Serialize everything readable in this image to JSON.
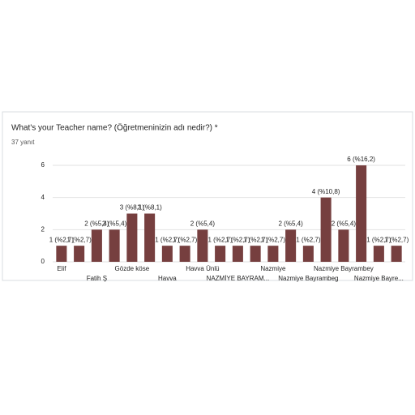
{
  "chart_data": {
    "type": "bar",
    "title": "What's your Teacher name? (Öğretmeninizin adı nedir?) *",
    "subtitle": "37 yanıt",
    "categories": [
      "Elif",
      null,
      "Fatih Ş",
      null,
      "Gözde köse",
      null,
      "Havva",
      null,
      "Havva Ünlü",
      null,
      "NAZMİYE BAYRAM...",
      null,
      "Nazmiye",
      null,
      "Nazmiye Bayrambeg",
      null,
      "Nazmiye Bayrambey",
      null,
      "Nazmiye Bayre...",
      null
    ],
    "values": [
      1,
      1,
      2,
      2,
      3,
      3,
      1,
      1,
      2,
      1,
      1,
      1,
      1,
      2,
      1,
      4,
      2,
      6,
      1,
      1
    ],
    "value_labels": [
      "1 (%2,7)",
      "1 (%2,7)",
      "2 (%5,4)",
      "2 (%5,4)",
      "3 (%8,1)",
      "3 (%8,1)",
      "1 (%2,7)",
      "1 (%2,7)",
      "2 (%5,4)",
      "1 (%2,7)",
      "1 (%2,7)",
      "1 (%2,7)",
      "1 (%2,7)",
      "2 (%5,4)",
      "1 (%2,7)",
      "4 (%10,8)",
      "2 (%5,4)",
      "6 (%16,2)",
      "1 (%2,7)",
      "1 (%2,7)"
    ],
    "color": "#763f3f",
    "ylim": [
      0,
      6
    ],
    "yticks": [
      0,
      2,
      4,
      6
    ],
    "grid": true
  }
}
